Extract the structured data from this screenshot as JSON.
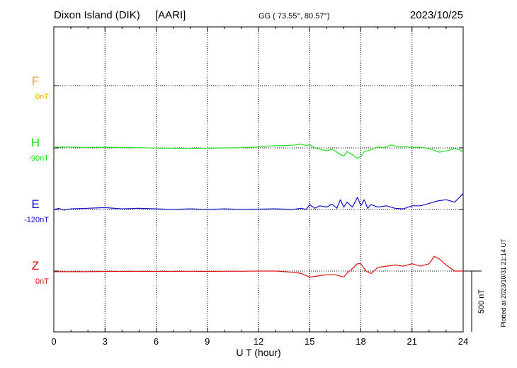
{
  "header": {
    "station": "Dixon Island (DIK)",
    "institute": "[AARI]",
    "coords": "GG ( 73.55°,  80.57°)",
    "date": "2023/10/25"
  },
  "footer": {
    "plotted": "Plotted at 2023/10/31 21:14 UT"
  },
  "chart_data": {
    "type": "line",
    "xlabel": "U T (hour)",
    "xlim": [
      0,
      24
    ],
    "xticks": [
      "0",
      "3",
      "6",
      "9",
      "12",
      "15",
      "18",
      "21",
      "24"
    ],
    "scale_bar": {
      "value_nT": 500,
      "label": "500 nT"
    },
    "series": [
      {
        "name": "F",
        "baseline": "0nT",
        "color": "#f0a800",
        "x": [],
        "y": []
      },
      {
        "name": "H",
        "baseline": "-90nT",
        "color": "#22e022",
        "x": [
          0,
          0.5,
          1,
          2,
          3,
          4,
          5,
          6,
          7,
          8,
          9,
          10,
          11,
          12,
          12.5,
          13,
          13.5,
          14,
          14.5,
          14.8,
          15,
          15.3,
          15.6,
          16,
          16.3,
          16.6,
          16.8,
          17,
          17.2,
          17.5,
          17.8,
          18,
          18.2,
          18.5,
          18.8,
          19,
          19.3,
          19.6,
          19.8,
          20,
          20.5,
          21,
          21.5,
          22,
          22.3,
          22.6,
          23,
          23.5,
          23.8,
          24
        ],
        "y": [
          5,
          8,
          7,
          4,
          6,
          3,
          2,
          -2,
          -3,
          -4,
          -3,
          0,
          2,
          8,
          15,
          18,
          20,
          22,
          30,
          20,
          25,
          0,
          -10,
          -25,
          -10,
          -35,
          -55,
          -65,
          -30,
          -55,
          -85,
          -70,
          -30,
          -20,
          -5,
          10,
          0,
          15,
          25,
          15,
          10,
          5,
          5,
          -5,
          -20,
          -35,
          -25,
          -5,
          -15,
          -40
        ]
      },
      {
        "name": "E",
        "baseline": "-120nT",
        "color": "#1010d0",
        "x": [
          0,
          0.3,
          0.6,
          1,
          2,
          3,
          4,
          5,
          6,
          7,
          8,
          9,
          10,
          11,
          12,
          13,
          14,
          14.5,
          14.8,
          15,
          15.3,
          15.6,
          16,
          16.3,
          16.6,
          16.8,
          17,
          17.2,
          17.5,
          17.8,
          18,
          18.2,
          18.4,
          18.6,
          19,
          19.5,
          20,
          20.5,
          21,
          21.5,
          22,
          22.5,
          23,
          23.5,
          24
        ],
        "y": [
          0,
          8,
          -5,
          5,
          10,
          15,
          5,
          10,
          5,
          0,
          5,
          0,
          5,
          0,
          3,
          5,
          0,
          10,
          0,
          40,
          10,
          30,
          20,
          45,
          10,
          80,
          20,
          60,
          20,
          100,
          30,
          80,
          10,
          40,
          20,
          30,
          10,
          5,
          30,
          30,
          50,
          70,
          80,
          60,
          130
        ]
      },
      {
        "name": "Z",
        "baseline": "0nT",
        "color": "#e01010",
        "x": [
          0,
          1,
          2,
          3,
          4,
          5,
          6,
          7,
          8,
          9,
          10,
          11,
          12,
          13,
          14,
          14.5,
          15,
          15.5,
          16,
          16.5,
          17,
          17.2,
          17.5,
          17.8,
          18,
          18.3,
          18.6,
          19,
          19.5,
          20,
          20.5,
          21,
          21.5,
          22,
          22.3,
          22.6,
          23,
          23.5,
          24
        ],
        "y": [
          -5,
          -5,
          -5,
          -3,
          -3,
          -3,
          -3,
          -3,
          -2,
          -3,
          -2,
          -2,
          0,
          0,
          -10,
          -20,
          -50,
          -40,
          -30,
          -30,
          -50,
          -15,
          20,
          60,
          60,
          0,
          -20,
          30,
          40,
          50,
          40,
          60,
          40,
          60,
          120,
          100,
          50,
          0,
          0
        ]
      }
    ]
  }
}
